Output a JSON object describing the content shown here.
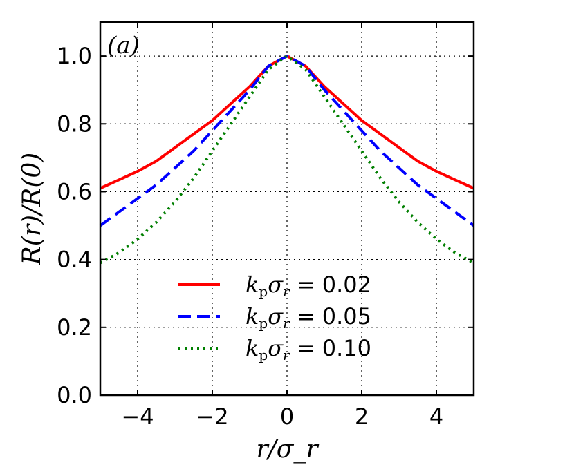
{
  "chart_data": {
    "type": "line",
    "title": "",
    "panel_label": "(a)",
    "xlabel": "r/σ_r",
    "ylabel": "R(r)/R(0)",
    "xlim": [
      -5,
      5
    ],
    "ylim": [
      0,
      1.1
    ],
    "xticks": [
      -4,
      -2,
      0,
      2,
      4
    ],
    "xtick_labels": [
      "−4",
      "−2",
      "0",
      "2",
      "4"
    ],
    "yticks": [
      0.0,
      0.2,
      0.4,
      0.6,
      0.8,
      1.0
    ],
    "ytick_labels": [
      "0.0",
      "0.2",
      "0.4",
      "0.6",
      "0.8",
      "1.0"
    ],
    "grid": true,
    "legend_position": "lower-center",
    "x": [
      -5,
      -4.5,
      -4,
      -3.5,
      -3,
      -2.5,
      -2,
      -1.5,
      -1,
      -0.5,
      0,
      0.5,
      1,
      1.5,
      2,
      2.5,
      3,
      3.5,
      4,
      4.5,
      5
    ],
    "series": [
      {
        "name": "k_p σ_r = 0.02",
        "legend_label": "= 0.02",
        "color": "#ff0000",
        "style": "solid",
        "values": [
          0.61,
          0.635,
          0.66,
          0.69,
          0.73,
          0.77,
          0.81,
          0.86,
          0.91,
          0.97,
          1.0,
          0.97,
          0.91,
          0.86,
          0.81,
          0.77,
          0.73,
          0.69,
          0.66,
          0.635,
          0.61
        ]
      },
      {
        "name": "k_p σ_r = 0.05",
        "legend_label": "= 0.05",
        "color": "#0000ff",
        "style": "dashed",
        "values": [
          0.5,
          0.54,
          0.58,
          0.62,
          0.67,
          0.72,
          0.78,
          0.84,
          0.9,
          0.97,
          1.0,
          0.97,
          0.9,
          0.84,
          0.78,
          0.72,
          0.67,
          0.62,
          0.58,
          0.54,
          0.5
        ]
      },
      {
        "name": "k_p σ_r = 0.10",
        "legend_label": "= 0.10",
        "color": "#007f00",
        "style": "dotted",
        "values": [
          0.39,
          0.42,
          0.46,
          0.51,
          0.57,
          0.64,
          0.72,
          0.8,
          0.88,
          0.96,
          1.0,
          0.96,
          0.88,
          0.8,
          0.72,
          0.64,
          0.57,
          0.51,
          0.46,
          0.42,
          0.39
        ]
      }
    ]
  }
}
